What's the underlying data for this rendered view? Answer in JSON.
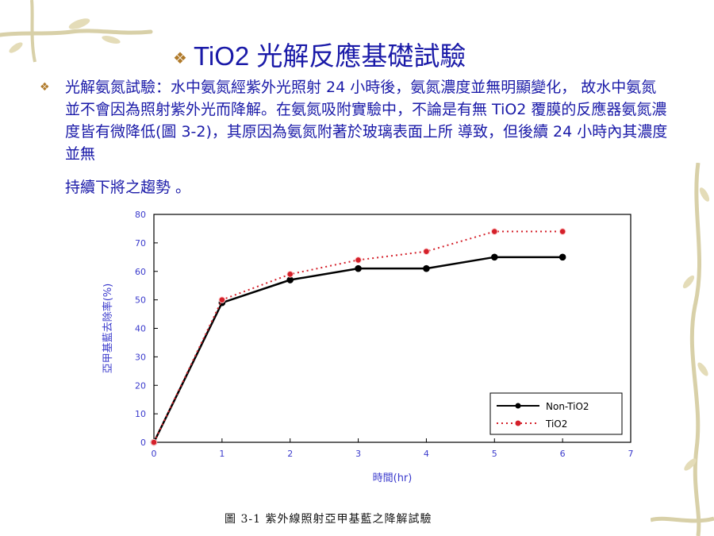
{
  "slide": {
    "title": "TiO2 光解反應基礎試驗",
    "bullet_text": "光解氨氮試驗：水中氨氮經紫外光照射 24 小時後，氨氮濃度並無明顯變化， 故水中氨氮並不會因為照射紫外光而降解。在氨氮吸附實驗中，不論是有無 TiO2 覆膜的反應器氨氮濃度皆有微降低(圖 3-2)，其原因為氨氮附著於玻璃表面上所 導致，但後續 24 小時內其濃度並無",
    "bullet_tail": "持續下將之趨勢 。",
    "caption": "圖 3-1 紫外線照射亞甲基藍之降解試驗",
    "colors": {
      "title": "#1a1aa8",
      "bullet": "#b07a2a",
      "axis_label": "#3a3acc",
      "series_tio2": "#d4202a",
      "series_non": "#000000"
    },
    "decoration": "bamboo-branch-vines"
  },
  "chart_data": {
    "type": "line",
    "xlabel": "時間(hr)",
    "ylabel": "亞甲基藍去除率(%)",
    "xlim": [
      0,
      7
    ],
    "ylim": [
      0,
      80
    ],
    "xticks": [
      "0",
      "1",
      "2",
      "3",
      "4",
      "5",
      "6",
      "7"
    ],
    "yticks": [
      "0",
      "10",
      "20",
      "30",
      "40",
      "50",
      "60",
      "70",
      "80"
    ],
    "x": [
      0,
      1,
      2,
      3,
      4,
      5,
      6
    ],
    "grid": false,
    "legend_position": "bottom-right",
    "series": [
      {
        "name": "Non-TiO2",
        "values": [
          0,
          49,
          57,
          61,
          61,
          65,
          65
        ],
        "color": "#000000",
        "style": "solid"
      },
      {
        "name": "TiO2",
        "values": [
          0,
          50,
          59,
          64,
          67,
          74,
          74
        ],
        "color": "#d4202a",
        "style": "dotted"
      }
    ]
  }
}
